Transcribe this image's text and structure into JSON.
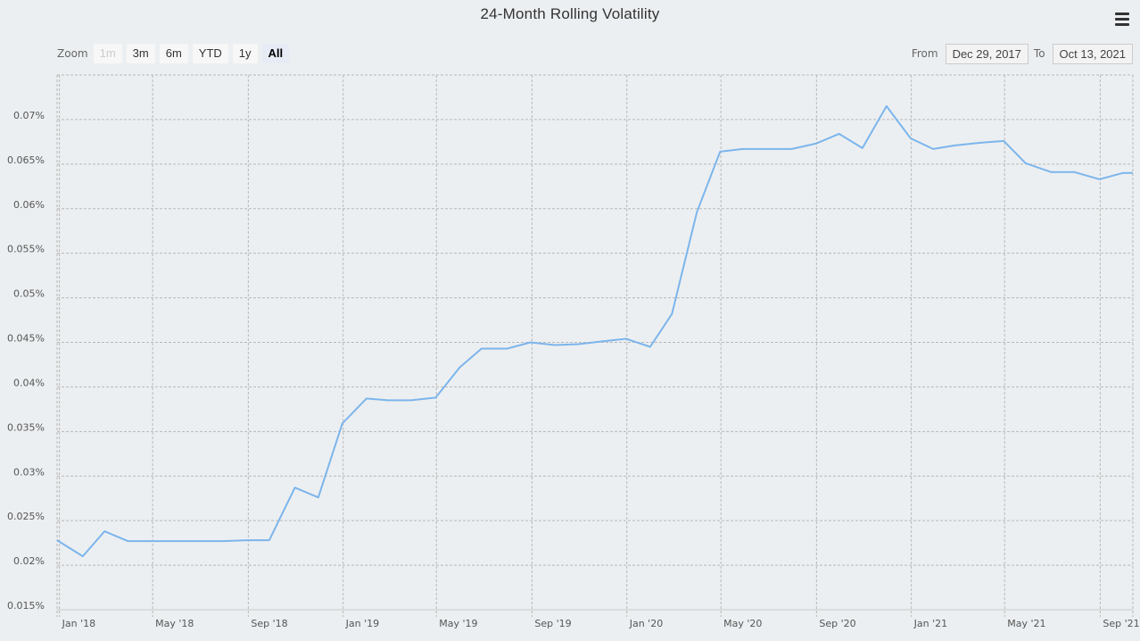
{
  "title": "24-Month Rolling Volatility",
  "menu": {
    "icon": "hamburger-menu-icon"
  },
  "zoom": {
    "label": "Zoom",
    "buttons": [
      {
        "label": "1m",
        "state": "disabled"
      },
      {
        "label": "3m",
        "state": "normal"
      },
      {
        "label": "6m",
        "state": "normal"
      },
      {
        "label": "YTD",
        "state": "normal"
      },
      {
        "label": "1y",
        "state": "normal"
      },
      {
        "label": "All",
        "state": "active"
      }
    ]
  },
  "range": {
    "from_label": "From",
    "from_value": "Dec 29, 2017",
    "to_label": "To",
    "to_value": "Oct 13, 2021"
  },
  "colors": {
    "line": "#7cb5ec",
    "background": "#eceff1",
    "grid": "#b8b8b8"
  },
  "chart_data": {
    "type": "line",
    "title": "24-Month Rolling Volatility",
    "xlabel": "",
    "ylabel": "",
    "grid": true,
    "xlim": [
      "2017-12-29",
      "2021-10-13"
    ],
    "ylim": [
      0.015,
      0.075
    ],
    "y_ticks": [
      "0.015%",
      "0.02%",
      "0.025%",
      "0.03%",
      "0.035%",
      "0.04%",
      "0.045%",
      "0.05%",
      "0.055%",
      "0.06%",
      "0.065%",
      "0.07%"
    ],
    "x_ticks": [
      {
        "label": "Jan '18",
        "date": "2018-01-01"
      },
      {
        "label": "May '18",
        "date": "2018-05-01"
      },
      {
        "label": "Sep '18",
        "date": "2018-09-01"
      },
      {
        "label": "Jan '19",
        "date": "2019-01-01"
      },
      {
        "label": "May '19",
        "date": "2019-05-01"
      },
      {
        "label": "Sep '19",
        "date": "2019-09-01"
      },
      {
        "label": "Jan '20",
        "date": "2020-01-01"
      },
      {
        "label": "May '20",
        "date": "2020-05-01"
      },
      {
        "label": "Sep '20",
        "date": "2020-09-01"
      },
      {
        "label": "Jan '21",
        "date": "2021-01-01"
      },
      {
        "label": "May '21",
        "date": "2021-05-01"
      },
      {
        "label": "Sep '21",
        "date": "2021-09-01"
      }
    ],
    "series": [
      {
        "points": [
          [
            "2017-12-29",
            0.0228
          ],
          [
            "2018-01-31",
            0.021
          ],
          [
            "2018-02-28",
            0.0238
          ],
          [
            "2018-03-30",
            0.0227
          ],
          [
            "2018-04-30",
            0.0227
          ],
          [
            "2018-05-31",
            0.0227
          ],
          [
            "2018-06-29",
            0.0227
          ],
          [
            "2018-07-31",
            0.0227
          ],
          [
            "2018-08-31",
            0.0228
          ],
          [
            "2018-09-28",
            0.0228
          ],
          [
            "2018-10-31",
            0.0287
          ],
          [
            "2018-11-30",
            0.0276
          ],
          [
            "2018-12-31",
            0.0359
          ],
          [
            "2019-01-31",
            0.0387
          ],
          [
            "2019-02-28",
            0.0385
          ],
          [
            "2019-03-29",
            0.0385
          ],
          [
            "2019-04-30",
            0.0388
          ],
          [
            "2019-05-31",
            0.0422
          ],
          [
            "2019-06-28",
            0.0443
          ],
          [
            "2019-07-31",
            0.0443
          ],
          [
            "2019-08-30",
            0.045
          ],
          [
            "2019-09-30",
            0.0447
          ],
          [
            "2019-10-31",
            0.0448
          ],
          [
            "2019-11-29",
            0.0451
          ],
          [
            "2019-12-31",
            0.0454
          ],
          [
            "2020-01-31",
            0.0445
          ],
          [
            "2020-02-28",
            0.0482
          ],
          [
            "2020-03-31",
            0.0596
          ],
          [
            "2020-04-30",
            0.0664
          ],
          [
            "2020-05-29",
            0.0667
          ],
          [
            "2020-06-30",
            0.0667
          ],
          [
            "2020-07-31",
            0.0667
          ],
          [
            "2020-08-31",
            0.0673
          ],
          [
            "2020-09-30",
            0.0684
          ],
          [
            "2020-10-30",
            0.0668
          ],
          [
            "2020-11-30",
            0.0715
          ],
          [
            "2020-12-31",
            0.0679
          ],
          [
            "2021-01-29",
            0.0667
          ],
          [
            "2021-02-26",
            0.0671
          ],
          [
            "2021-03-31",
            0.0674
          ],
          [
            "2021-04-30",
            0.0676
          ],
          [
            "2021-05-28",
            0.0651
          ],
          [
            "2021-06-30",
            0.0641
          ],
          [
            "2021-07-30",
            0.0641
          ],
          [
            "2021-08-31",
            0.0633
          ],
          [
            "2021-09-30",
            0.064
          ],
          [
            "2021-10-13",
            0.064
          ]
        ]
      }
    ]
  }
}
